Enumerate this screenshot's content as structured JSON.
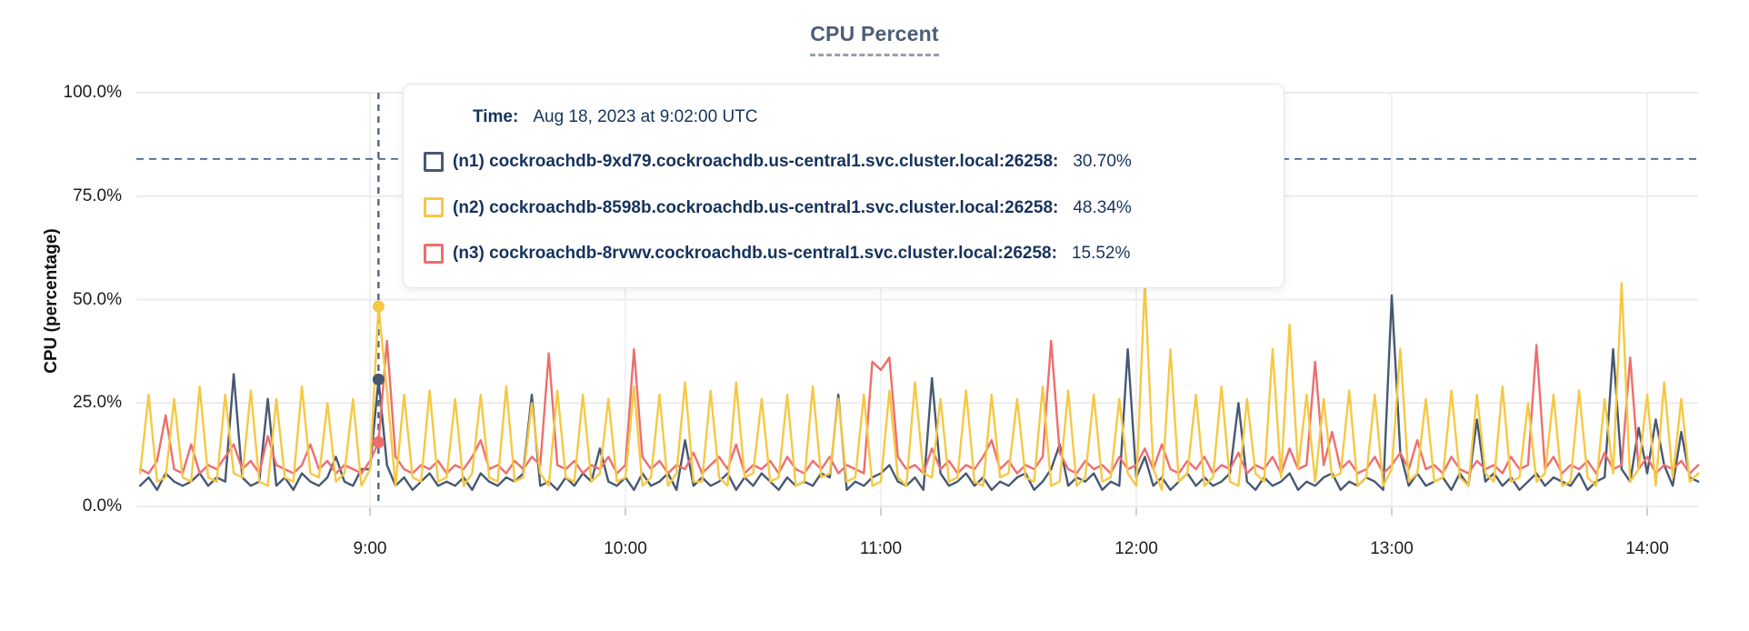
{
  "chart_data": {
    "type": "line",
    "title": "CPU Percent",
    "ylabel": "CPU (percentage)",
    "y_axis": {
      "ylim": [
        0,
        100
      ],
      "ticks": [
        {
          "label": "0.0%",
          "value": 0
        },
        {
          "label": "25.0%",
          "value": 25
        },
        {
          "label": "50.0%",
          "value": 50
        },
        {
          "label": "75.0%",
          "value": 75
        },
        {
          "label": "100.0%",
          "value": 100
        }
      ]
    },
    "x_axis": {
      "start_minute": 486,
      "end_minute": 852,
      "step_minutes": 2,
      "ticks": [
        {
          "label": "9:00",
          "minute": 540
        },
        {
          "label": "10:00",
          "minute": 600
        },
        {
          "label": "11:00",
          "minute": 660
        },
        {
          "label": "12:00",
          "minute": 720
        },
        {
          "label": "13:00",
          "minute": 780
        },
        {
          "label": "14:00",
          "minute": 840
        }
      ]
    },
    "grid": true,
    "threshold_dashed_line_percent": 84,
    "hover": {
      "minute": 542,
      "time": "Aug 18, 2023 at 9:02:00 UTC"
    },
    "series": [
      {
        "id": "n1",
        "name": "(n1) cockroachdb-9xd79.cockroachdb.us-central1.svc.cluster.local:26258",
        "color": "#475872",
        "hover_value": 30.7,
        "values": [
          5,
          7,
          4,
          8,
          6,
          5,
          6,
          8,
          5,
          7,
          6,
          32,
          7,
          5,
          6,
          26,
          5,
          7,
          4,
          8,
          6,
          5,
          7,
          12,
          6,
          5,
          9,
          9,
          30.7,
          10,
          5,
          7,
          4,
          6,
          8,
          5,
          6,
          5,
          7,
          4,
          8,
          6,
          5,
          7,
          6,
          8,
          27,
          5,
          6,
          4,
          7,
          5,
          8,
          6,
          14,
          6,
          5,
          7,
          4,
          8,
          5,
          6,
          8,
          4,
          16,
          5,
          7,
          5,
          6,
          8,
          4,
          7,
          5,
          8,
          6,
          4,
          7,
          5,
          6,
          5,
          8,
          7,
          27,
          4,
          6,
          5,
          7,
          8,
          10,
          6,
          5,
          7,
          4,
          31,
          8,
          5,
          6,
          8,
          5,
          7,
          4,
          6,
          5,
          7,
          8,
          4,
          6,
          9,
          15,
          5,
          7,
          6,
          8,
          4,
          6,
          5,
          38,
          7,
          12,
          5,
          7,
          4,
          6,
          8,
          5,
          7,
          5,
          6,
          8,
          25,
          6,
          4,
          7,
          5,
          6,
          8,
          4,
          6,
          5,
          7,
          8,
          4,
          6,
          5,
          7,
          6,
          4,
          51,
          13,
          5,
          8,
          5,
          6,
          7,
          4,
          8,
          5,
          21,
          6,
          8,
          5,
          7,
          4,
          6,
          8,
          5,
          7,
          6,
          5,
          8,
          4,
          6,
          7,
          38,
          9,
          6,
          19,
          8,
          21,
          10,
          5,
          18,
          7,
          6
        ]
      },
      {
        "id": "n2",
        "name": "(n2) cockroachdb-8598b.cockroachdb.us-central1.svc.cluster.local:26258",
        "color": "#f6c843",
        "hover_value": 48.34,
        "values": [
          8,
          27,
          6,
          7,
          26,
          7,
          6,
          29,
          7,
          6,
          27,
          8,
          7,
          28,
          6,
          5,
          26,
          7,
          6,
          29,
          8,
          7,
          25,
          6,
          8,
          26,
          5,
          9,
          48.34,
          28,
          5,
          27,
          7,
          6,
          28,
          6,
          7,
          26,
          5,
          8,
          27,
          7,
          6,
          29,
          6,
          7,
          25,
          8,
          5,
          28,
          7,
          6,
          27,
          6,
          8,
          26,
          6,
          7,
          29,
          5,
          7,
          27,
          5,
          8,
          30,
          6,
          6,
          28,
          7,
          5,
          30,
          7,
          8,
          26,
          6,
          7,
          27,
          5,
          6,
          29,
          7,
          8,
          26,
          6,
          7,
          27,
          5,
          6,
          28,
          7,
          5,
          30,
          8,
          7,
          26,
          6,
          7,
          28,
          6,
          5,
          27,
          7,
          8,
          26,
          7,
          6,
          29,
          5,
          6,
          28,
          5,
          7,
          27,
          6,
          7,
          26,
          8,
          5,
          54,
          9,
          4,
          38,
          6,
          8,
          27,
          5,
          7,
          29,
          6,
          5,
          26,
          8,
          6,
          38,
          7,
          44,
          9,
          27,
          6,
          26,
          7,
          8,
          28,
          5,
          7,
          27,
          5,
          9,
          38,
          6,
          8,
          26,
          6,
          7,
          28,
          7,
          5,
          27,
          8,
          6,
          29,
          6,
          7,
          25,
          6,
          8,
          27,
          5,
          6,
          28,
          7,
          5,
          26,
          8,
          54,
          6,
          9,
          27,
          5,
          30,
          7,
          26,
          6,
          8
        ]
      },
      {
        "id": "n3",
        "name": "(n3) cockroachdb-8rvwv.cockroachdb.us-central1.svc.cluster.local:26258",
        "color": "#ee6e6e",
        "hover_value": 15.52,
        "values": [
          9,
          8,
          11,
          22,
          9,
          8,
          15,
          8,
          10,
          9,
          12,
          15,
          9,
          11,
          8,
          17,
          10,
          9,
          8,
          10,
          15,
          9,
          11,
          8,
          10,
          9,
          8,
          11,
          15.52,
          40,
          12,
          9,
          8,
          10,
          9,
          11,
          8,
          10,
          9,
          12,
          16,
          9,
          10,
          8,
          11,
          9,
          12,
          10,
          37,
          10,
          9,
          11,
          8,
          10,
          9,
          12,
          8,
          10,
          38,
          12,
          9,
          11,
          8,
          10,
          9,
          13,
          8,
          10,
          12,
          9,
          15,
          8,
          10,
          9,
          11,
          8,
          12,
          9,
          8,
          11,
          9,
          12,
          8,
          10,
          9,
          8,
          35,
          33,
          36,
          12,
          9,
          10,
          8,
          14,
          9,
          11,
          8,
          10,
          9,
          12,
          16,
          9,
          11,
          8,
          10,
          9,
          12,
          40,
          13,
          9,
          8,
          11,
          9,
          10,
          8,
          12,
          9,
          10,
          14,
          9,
          15,
          9,
          8,
          11,
          9,
          12,
          8,
          10,
          9,
          13,
          8,
          10,
          9,
          12,
          8,
          14,
          9,
          10,
          35,
          10,
          18,
          9,
          11,
          8,
          9,
          12,
          8,
          10,
          13,
          9,
          16,
          9,
          10,
          8,
          12,
          9,
          8,
          11,
          9,
          10,
          8,
          12,
          9,
          10,
          39,
          9,
          12,
          8,
          10,
          9,
          11,
          8,
          13,
          9,
          10,
          36,
          9,
          12,
          8,
          10,
          9,
          11,
          8,
          10
        ]
      }
    ]
  },
  "tooltip": {
    "time_label": "Time:",
    "time_value": "Aug 18, 2023 at 9:02:00 UTC",
    "rows": [
      {
        "label": "(n1) cockroachdb-9xd79.cockroachdb.us-central1.svc.cluster.local:26258:",
        "value": "30.70%"
      },
      {
        "label": "(n2) cockroachdb-8598b.cockroachdb.us-central1.svc.cluster.local:26258:",
        "value": "48.34%"
      },
      {
        "label": "(n3) cockroachdb-8rvwv.cockroachdb.us-central1.svc.cluster.local:26258:",
        "value": "15.52%"
      }
    ]
  }
}
